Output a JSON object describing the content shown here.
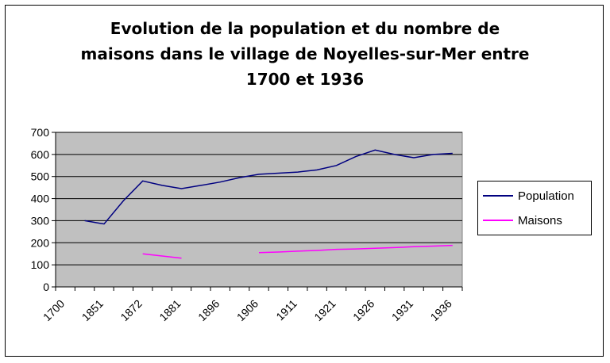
{
  "chart_data": {
    "type": "line",
    "title_lines": [
      "Evolution de la population et du nombre de",
      "maisons dans le village de Noyelles-sur-Mer entre",
      "1700 et 1936"
    ],
    "categories": [
      "1700",
      "",
      "1851",
      "",
      "1872",
      "",
      "1881",
      "",
      "1896",
      "",
      "1906",
      "",
      "1911",
      "",
      "1921",
      "",
      "1926",
      "",
      "1931",
      "",
      "1936"
    ],
    "x_tick_labels": [
      "1700",
      "1851",
      "1872",
      "1881",
      "1896",
      "1906",
      "1911",
      "1921",
      "1926",
      "1931",
      "1936"
    ],
    "series": [
      {
        "name": "Population",
        "color": "#000080",
        "values": [
          null,
          300,
          285,
          390,
          480,
          460,
          445,
          460,
          475,
          495,
          510,
          515,
          520,
          530,
          550,
          590,
          620,
          600,
          585,
          600,
          605
        ]
      },
      {
        "name": "Maisons",
        "color": "#ff00ff",
        "values": [
          null,
          null,
          null,
          null,
          150,
          140,
          130,
          null,
          null,
          null,
          155,
          158,
          162,
          165,
          170,
          172,
          175,
          178,
          182,
          185,
          188
        ]
      }
    ],
    "y_ticks": [
      0,
      100,
      200,
      300,
      400,
      500,
      600,
      700
    ],
    "ylim": [
      0,
      700
    ],
    "xlabel": "",
    "ylabel": "",
    "grid": true,
    "plot_background": "#c0c0c0",
    "legend_position": "right"
  }
}
